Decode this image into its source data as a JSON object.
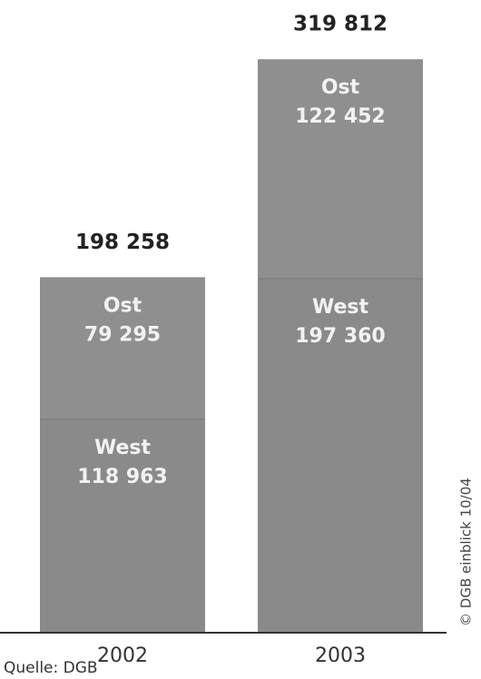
{
  "chart_data": {
    "type": "stacked_bar",
    "categories": [
      "2002",
      "2003"
    ],
    "series": [
      {
        "name": "West",
        "color": "#8a8a8a",
        "values": [
          118963,
          197360
        ],
        "value_labels": [
          "118 963",
          "197 360"
        ]
      },
      {
        "name": "Ost",
        "color": "#8f8f8f",
        "values": [
          79295,
          122452
        ],
        "value_labels": [
          "79 295",
          "122 452"
        ]
      }
    ],
    "totals": [
      198258,
      319812
    ],
    "total_labels": [
      "198 258",
      "319 812"
    ],
    "ylim": [
      0,
      325000
    ],
    "source": "Quelle: DGB",
    "credit": "© DGB einblick 10/04"
  }
}
